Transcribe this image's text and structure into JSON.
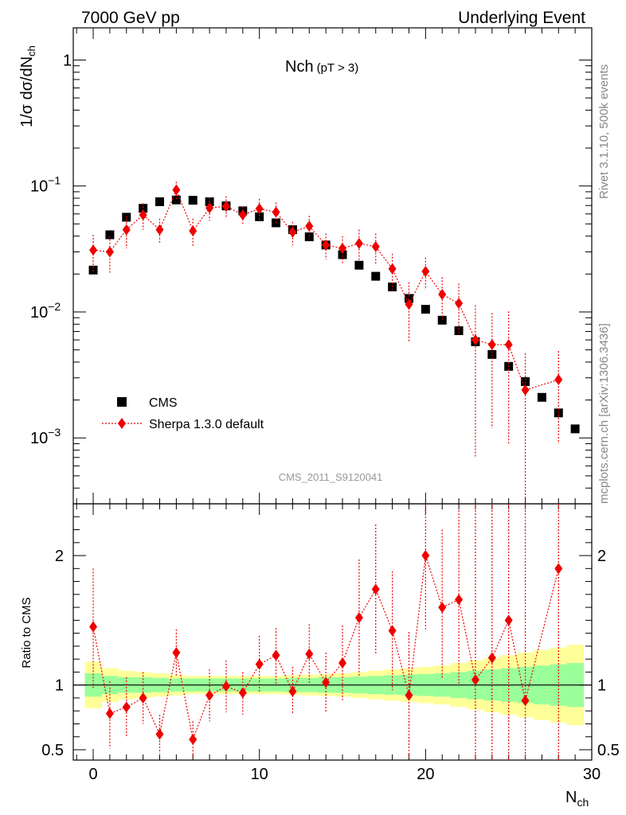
{
  "header": {
    "left": "7000 GeV pp",
    "right": "Underlying Event"
  },
  "side_labels": {
    "rivet": "Rivet 3.1.10,  500k events",
    "mcplots": "mcplots.cern.ch [arXiv:1306.3436]"
  },
  "chart_data": [
    {
      "type": "scatter",
      "panel": "main",
      "title": "Nch",
      "title_sub": "(pT >  3)",
      "watermark": "CMS_2011_S9120041",
      "ylabel": "1/σ dσ/dN",
      "ylabel_sub": "ch",
      "yscale": "log",
      "ylim": [
        0.0003,
        1.8
      ],
      "xlim": [
        -1.2,
        30
      ],
      "yticks": [
        {
          "v": 1,
          "label": "1",
          "exp": ""
        },
        {
          "v": 0.1,
          "label": "10",
          "exp": "−1"
        },
        {
          "v": 0.01,
          "label": "10",
          "exp": "−2"
        },
        {
          "v": 0.001,
          "label": "10",
          "exp": "−3"
        }
      ],
      "legend_position": "lower-left",
      "series": [
        {
          "name": "CMS",
          "color": "#000000",
          "marker": "square",
          "x": [
            0,
            1,
            2,
            3,
            4,
            5,
            6,
            7,
            8,
            9,
            10,
            11,
            12,
            13,
            14,
            15,
            16,
            17,
            18,
            19,
            20,
            21,
            22,
            23,
            24,
            25,
            26,
            27,
            28,
            29
          ],
          "y": [
            0.0215,
            0.041,
            0.0565,
            0.0665,
            0.075,
            0.0775,
            0.077,
            0.075,
            0.0695,
            0.0635,
            0.057,
            0.051,
            0.045,
            0.0395,
            0.034,
            0.0285,
            0.0235,
            0.0192,
            0.0158,
            0.0128,
            0.0105,
            0.0086,
            0.0071,
            0.0058,
            0.0046,
            0.0037,
            0.0028,
            0.0021,
            0.00158,
            0.00118
          ]
        },
        {
          "name": "Sherpa 1.3.0 default",
          "color": "#ee0000",
          "marker": "diamond",
          "line": "dotted",
          "x": [
            0,
            1,
            2,
            3,
            4,
            5,
            6,
            7,
            8,
            9,
            10,
            11,
            12,
            13,
            14,
            15,
            16,
            17,
            18,
            19,
            20,
            21,
            22,
            23,
            24,
            25,
            26,
            28
          ],
          "y": [
            0.031,
            0.03,
            0.045,
            0.059,
            0.045,
            0.093,
            0.044,
            0.067,
            0.069,
            0.059,
            0.066,
            0.062,
            0.043,
            0.048,
            0.034,
            0.032,
            0.035,
            0.033,
            0.022,
            0.0115,
            0.021,
            0.0138,
            0.0117,
            0.006,
            0.0055,
            0.0055,
            0.0024,
            0.0029
          ],
          "err_lo": [
            0.021,
            0.02,
            0.032,
            0.045,
            0.035,
            0.078,
            0.033,
            0.053,
            0.055,
            0.049,
            0.053,
            0.05,
            0.034,
            0.038,
            0.026,
            0.024,
            0.025,
            0.024,
            0.015,
            0.0058,
            0.015,
            0.0087,
            0.0066,
            0.0007,
            0.0012,
            0.0009,
            0.0001,
            0.0009
          ],
          "err_hi": [
            0.041,
            0.04,
            0.058,
            0.073,
            0.055,
            0.108,
            0.055,
            0.081,
            0.083,
            0.069,
            0.079,
            0.074,
            0.052,
            0.058,
            0.042,
            0.04,
            0.045,
            0.042,
            0.029,
            0.0172,
            0.027,
            0.0189,
            0.0168,
            0.0113,
            0.0098,
            0.0101,
            0.0047,
            0.0049
          ]
        }
      ]
    },
    {
      "type": "scatter",
      "panel": "ratio",
      "ylabel": "Ratio to CMS",
      "xlabel": "N",
      "xlabel_sub": "ch",
      "ylim": [
        0.42,
        2.4
      ],
      "xlim": [
        -1.2,
        30
      ],
      "xticks": [
        0,
        10,
        20,
        30
      ],
      "yticks": [
        0.5,
        1,
        2
      ],
      "band": {
        "x_edges": [
          -0.5,
          0.5,
          1.5,
          2.5,
          3.5,
          4.5,
          5.5,
          6.5,
          7.5,
          8.5,
          9.5,
          10.5,
          11.5,
          12.5,
          13.5,
          14.5,
          15.5,
          16.5,
          17.5,
          18.5,
          19.5,
          20.5,
          21.5,
          22.5,
          23.5,
          24.5,
          25.5,
          26.5,
          27.5,
          28.5,
          29.5
        ],
        "stat": [
          0.09,
          0.07,
          0.06,
          0.06,
          0.055,
          0.05,
          0.05,
          0.05,
          0.05,
          0.05,
          0.05,
          0.05,
          0.055,
          0.055,
          0.06,
          0.06,
          0.065,
          0.07,
          0.075,
          0.08,
          0.085,
          0.09,
          0.1,
          0.11,
          0.12,
          0.13,
          0.14,
          0.15,
          0.16,
          0.17
        ],
        "total": [
          0.18,
          0.13,
          0.11,
          0.1,
          0.09,
          0.08,
          0.07,
          0.07,
          0.07,
          0.07,
          0.07,
          0.07,
          0.075,
          0.08,
          0.085,
          0.09,
          0.1,
          0.11,
          0.12,
          0.13,
          0.14,
          0.15,
          0.17,
          0.19,
          0.21,
          0.23,
          0.25,
          0.27,
          0.29,
          0.31
        ],
        "stat_color": "#99ff99",
        "total_color": "#ffff99"
      },
      "series": [
        {
          "name": "Sherpa 1.3.0 default",
          "color": "#ee0000",
          "marker": "diamond",
          "line": "dotted",
          "x": [
            0,
            1,
            2,
            3,
            4,
            5,
            6,
            7,
            8,
            9,
            10,
            11,
            12,
            13,
            14,
            15,
            16,
            17,
            18,
            19,
            20,
            21,
            22,
            23,
            24,
            25,
            26,
            28
          ],
          "y": [
            1.45,
            0.78,
            0.83,
            0.9,
            0.62,
            1.25,
            0.58,
            0.92,
            0.99,
            0.94,
            1.16,
            1.23,
            0.95,
            1.24,
            1.02,
            1.17,
            1.52,
            1.74,
            1.42,
            0.92,
            2.0,
            1.6,
            1.66,
            1.04,
            1.21,
            1.5,
            0.88,
            1.9
          ],
          "err_lo": [
            0.97,
            0.51,
            0.6,
            0.7,
            0.47,
            1.06,
            0.44,
            0.72,
            0.79,
            0.77,
            0.94,
            1.0,
            0.78,
            1.0,
            0.79,
            0.88,
            1.07,
            1.24,
            0.96,
            0.44,
            1.43,
            1.05,
            1.01,
            0.3,
            0.33,
            0.33,
            0.3,
            0.3
          ],
          "err_hi": [
            1.9,
            1.03,
            1.06,
            1.1,
            0.77,
            1.43,
            0.72,
            1.12,
            1.19,
            1.1,
            1.38,
            1.44,
            1.14,
            1.47,
            1.25,
            1.46,
            1.97,
            2.24,
            1.88,
            1.41,
            2.55,
            2.2,
            2.35,
            2.4,
            2.4,
            2.4,
            2.4,
            2.4
          ]
        }
      ]
    }
  ]
}
